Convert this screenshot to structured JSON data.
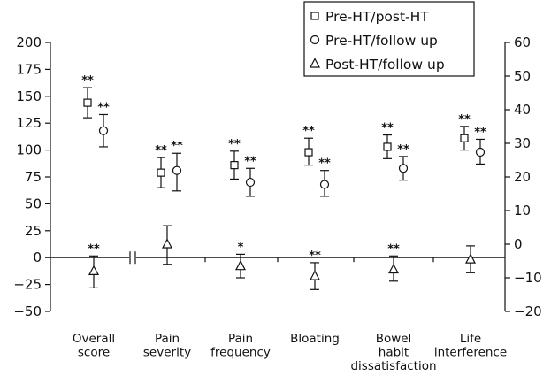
{
  "chart_data": {
    "type": "scatter",
    "categories": [
      [
        "Overall",
        "score"
      ],
      [
        "Pain",
        "severity"
      ],
      [
        "Pain",
        "frequency"
      ],
      [
        "Bloating"
      ],
      [
        "Bowel",
        "habit",
        "dissatisfaction"
      ],
      [
        "Life",
        "interference"
      ]
    ],
    "left_axis": {
      "ticks": [
        200,
        175,
        150,
        125,
        100,
        75,
        50,
        25,
        0,
        -25,
        -50
      ],
      "ylim": [
        -50,
        200
      ]
    },
    "right_axis": {
      "ticks": [
        60,
        50,
        40,
        30,
        20,
        10,
        0,
        -10,
        -20
      ],
      "ylim": [
        -20,
        60
      ]
    },
    "axis_break_marker": "||",
    "legend_placement": "top-right",
    "series": [
      {
        "name": "Pre-HT/post-HT",
        "marker": "square",
        "axis": "left",
        "points": [
          {
            "category": 0,
            "y": 144,
            "lo": 130,
            "hi": 158,
            "sig": "**"
          },
          {
            "category": 1,
            "y": 79,
            "lo": 65,
            "hi": 93,
            "sig": "**"
          },
          {
            "category": 2,
            "y": 86,
            "lo": 73,
            "hi": 99,
            "sig": "**"
          },
          {
            "category": 3,
            "y": 98,
            "lo": 86,
            "hi": 111,
            "sig": "**"
          },
          {
            "category": 4,
            "y": 103,
            "lo": 92,
            "hi": 114,
            "sig": "**"
          },
          {
            "category": 5,
            "y": 111,
            "lo": 100,
            "hi": 122,
            "sig": "**"
          }
        ]
      },
      {
        "name": "Pre-HT/follow up",
        "marker": "circle",
        "axis": "left",
        "points": [
          {
            "category": 0,
            "y": 118,
            "lo": 103,
            "hi": 133,
            "sig": "**"
          },
          {
            "category": 1,
            "y": 81,
            "lo": 62,
            "hi": 97,
            "sig": "**"
          },
          {
            "category": 2,
            "y": 70,
            "lo": 57,
            "hi": 83,
            "sig": "**"
          },
          {
            "category": 3,
            "y": 68,
            "lo": 57,
            "hi": 81,
            "sig": "**"
          },
          {
            "category": 4,
            "y": 83,
            "lo": 72,
            "hi": 94,
            "sig": "**"
          },
          {
            "category": 5,
            "y": 98,
            "lo": 87,
            "hi": 110,
            "sig": "**"
          }
        ]
      },
      {
        "name": "Post-HT/follow up",
        "marker": "triangle",
        "axis": "right",
        "points": [
          {
            "category": 0,
            "y": -8,
            "lo": -13,
            "hi": -3.5,
            "sig": "**"
          },
          {
            "category": 1,
            "y": 0,
            "lo": -6,
            "hi": 5.5,
            "sig": ""
          },
          {
            "category": 2,
            "y": -6.5,
            "lo": -10,
            "hi": -3,
            "sig": "*"
          },
          {
            "category": 3,
            "y": -9.5,
            "lo": -13.5,
            "hi": -5.5,
            "sig": "**"
          },
          {
            "category": 4,
            "y": -7.5,
            "lo": -11,
            "hi": -3.5,
            "sig": "**"
          },
          {
            "category": 5,
            "y": -4.5,
            "lo": -8.5,
            "hi": -0.5,
            "sig": ""
          }
        ]
      }
    ]
  }
}
